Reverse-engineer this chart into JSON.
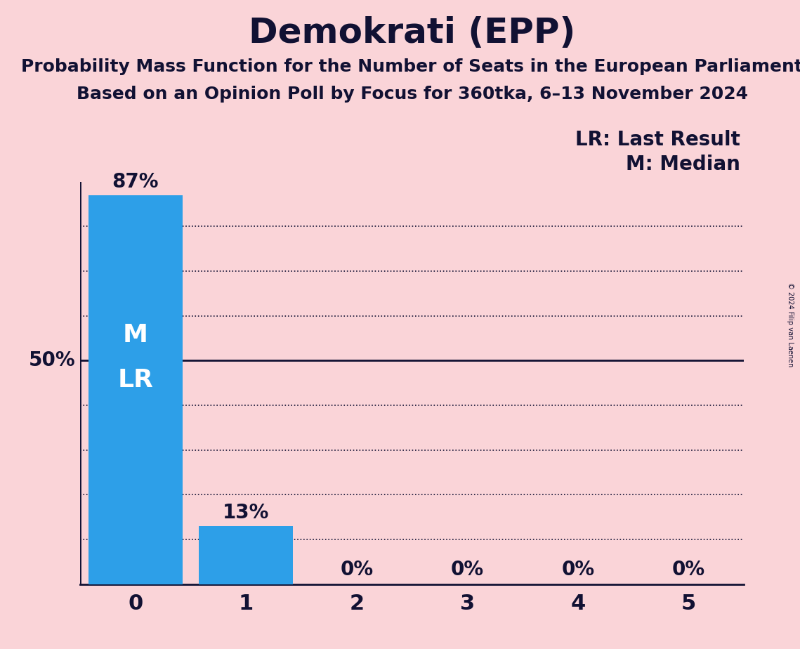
{
  "title": "Demokrati (EPP)",
  "subtitle1": "Probability Mass Function for the Number of Seats in the European Parliament",
  "subtitle2": "Based on an Opinion Poll by Focus for 360tka, 6–13 November 2024",
  "categories": [
    0,
    1,
    2,
    3,
    4,
    5
  ],
  "values": [
    0.87,
    0.13,
    0.0,
    0.0,
    0.0,
    0.0
  ],
  "bar_color": "#2D9FE8",
  "background_color": "#FAD4D8",
  "label_lr": "LR: Last Result",
  "label_m": "M: Median",
  "median_seat": 0,
  "last_result_seat": 0,
  "bar_labels": [
    "87%",
    "13%",
    "0%",
    "0%",
    "0%",
    "0%"
  ],
  "fifty_pct_line": 0.5,
  "copyright": "© 2024 Filip van Laenen",
  "ylim": [
    0,
    0.9
  ],
  "xlim": [
    -0.5,
    5.5
  ],
  "dotted_grid_levels": [
    0.1,
    0.2,
    0.3,
    0.4,
    0.6,
    0.7,
    0.8
  ],
  "solid_grid_levels": [
    0.5
  ],
  "title_fontsize": 36,
  "subtitle_fontsize": 18,
  "bar_label_fontsize": 20,
  "axis_tick_fontsize": 22,
  "legend_fontsize": 20,
  "ml_label_fontsize": 26
}
